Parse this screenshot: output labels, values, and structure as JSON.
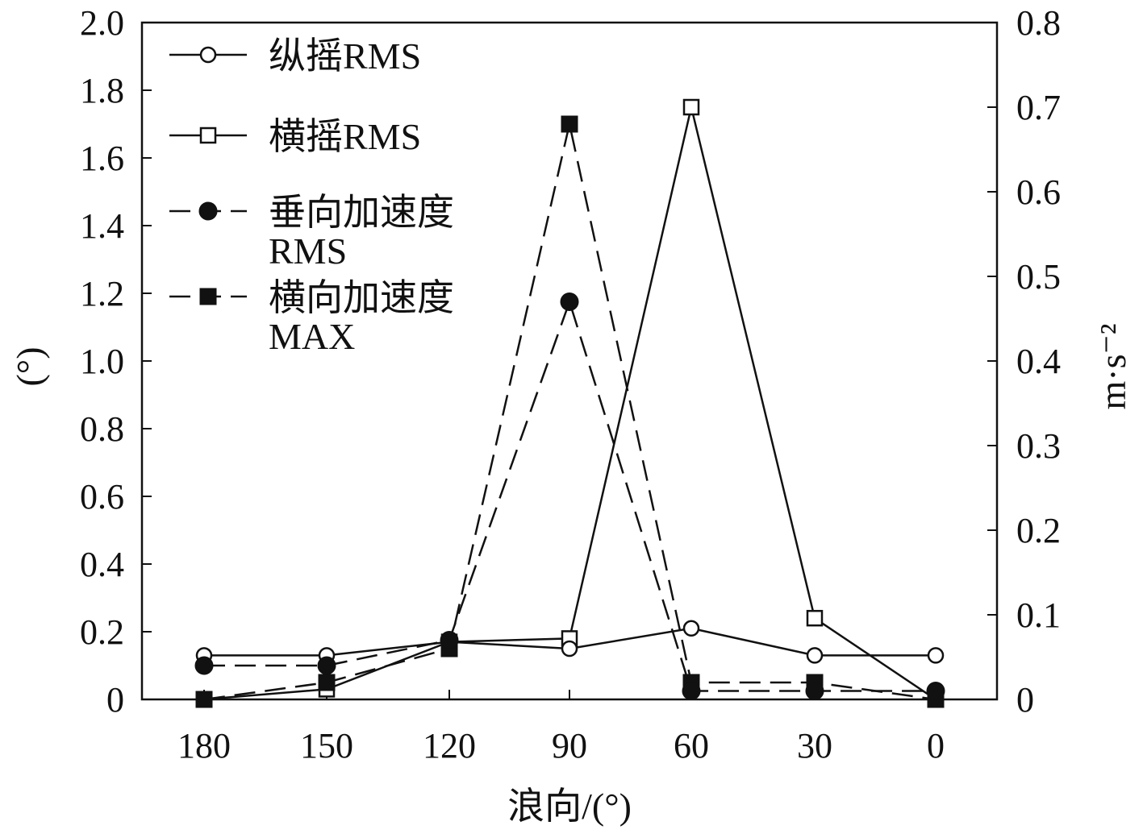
{
  "chart_data": {
    "type": "line",
    "xlabel": "浪向/(°)",
    "ylabel_left": "(°)",
    "ylabel_right": "m·s⁻²",
    "x_categories": [
      "180",
      "150",
      "120",
      "90",
      "60",
      "30",
      "0"
    ],
    "ylim_left": [
      0,
      2.0
    ],
    "ylim_right": [
      0,
      0.8
    ],
    "yticks_left": [
      "0",
      "0.2",
      "0.4",
      "0.6",
      "0.8",
      "1.0",
      "1.2",
      "1.4",
      "1.6",
      "1.8",
      "2.0"
    ],
    "yticks_right": [
      "0",
      "0.1",
      "0.2",
      "0.3",
      "0.4",
      "0.5",
      "0.6",
      "0.7",
      "0.8"
    ],
    "series": [
      {
        "name": "纵摇RMS",
        "axis": "left",
        "line": "solid",
        "marker": "open-circle",
        "values": [
          0.13,
          0.13,
          0.17,
          0.15,
          0.21,
          0.13,
          0.13
        ]
      },
      {
        "name": "横摇RMS",
        "axis": "left",
        "line": "solid",
        "marker": "open-square",
        "values": [
          0.0,
          0.03,
          0.17,
          0.18,
          1.75,
          0.24,
          0.0
        ]
      },
      {
        "name_lines": [
          "垂向加速度",
          "RMS"
        ],
        "axis": "right",
        "line": "dashed",
        "marker": "filled-circle",
        "values": [
          0.04,
          0.04,
          0.07,
          0.47,
          0.01,
          0.01,
          0.01
        ]
      },
      {
        "name_lines": [
          "横向加速度",
          "MAX"
        ],
        "axis": "right",
        "line": "dashed",
        "marker": "filled-square",
        "values": [
          0.0,
          0.02,
          0.06,
          0.68,
          0.02,
          0.02,
          0.0
        ]
      }
    ],
    "legend_position": "top-left",
    "grid": false
  }
}
